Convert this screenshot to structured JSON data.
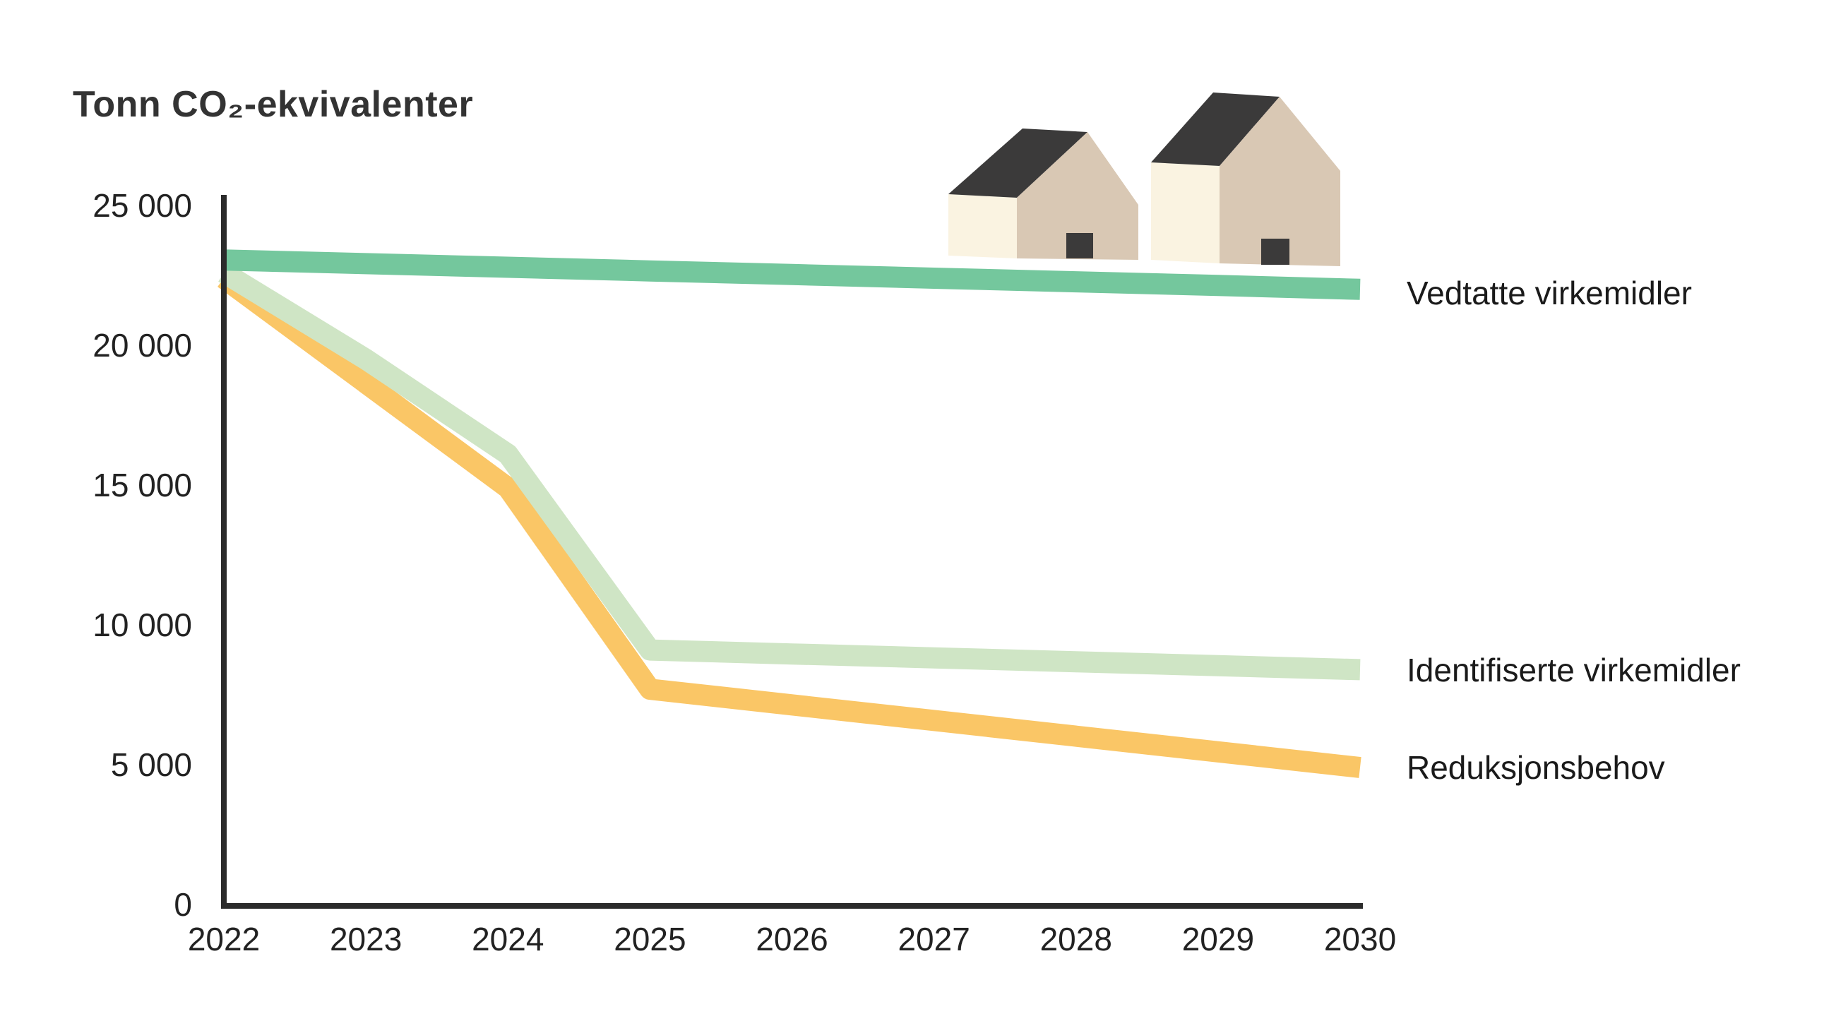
{
  "chart_data": {
    "type": "line",
    "title": "Tonn CO₂-ekvivalenter",
    "x_labels": [
      "2022",
      "2023",
      "2024",
      "2025",
      "2026",
      "2027",
      "2028",
      "2029",
      "2030"
    ],
    "y_tick_values": [
      0,
      5000,
      10000,
      15000,
      20000,
      25000
    ],
    "y_tick_labels": [
      "0",
      "5 000",
      "10 000",
      "15 000",
      "20 000",
      "25 000"
    ],
    "ylim": [
      0,
      25000
    ],
    "grid": false,
    "legend_position": "right-of-line-ends",
    "series": [
      {
        "name": "Vedtatte virkemidler",
        "color": "#74c79d",
        "values": [
          23050,
          22920,
          22790,
          22660,
          22530,
          22400,
          22270,
          22140,
          22000
        ]
      },
      {
        "name": "Identifiserte virkemidler",
        "color": "#cfe5c5",
        "values": [
          22600,
          19500,
          16100,
          9100,
          8960,
          8820,
          8680,
          8540,
          8400
        ]
      },
      {
        "name": "Reduksjonsbehov",
        "color": "#fac666",
        "values": [
          22400,
          18650,
          14900,
          7700,
          7140,
          6580,
          6020,
          5460,
          4900
        ]
      }
    ]
  },
  "illustration": {
    "roof_color": "#3b3a3a",
    "front_wall_color": "#faf3e1",
    "gable_wall_color": "#d9c8b4",
    "door_color": "#3b3a3a"
  }
}
